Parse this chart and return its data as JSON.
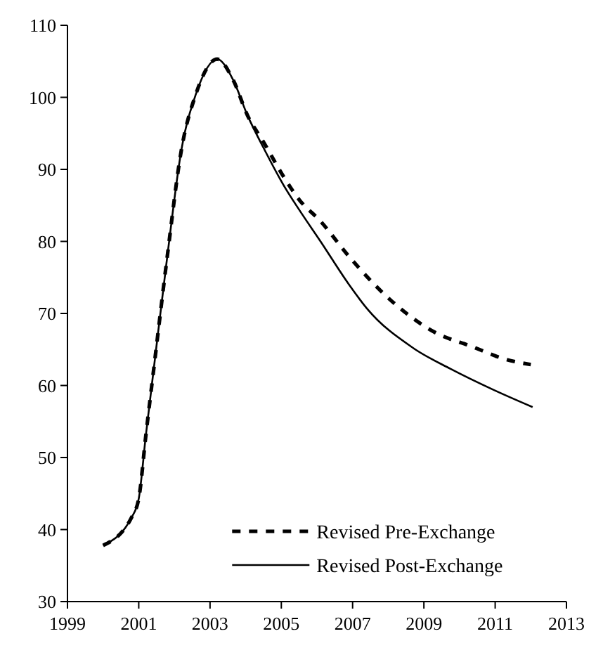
{
  "chart_data": {
    "type": "line",
    "xlim": [
      1999,
      2013
    ],
    "xticks": [
      1999,
      2001,
      2003,
      2005,
      2007,
      2009,
      2011,
      2013
    ],
    "ylim": [
      30,
      110
    ],
    "yticks": [
      30,
      40,
      50,
      60,
      70,
      80,
      90,
      100,
      110
    ],
    "grid": false,
    "legend": "bottom right",
    "series": [
      {
        "name": "Revised Pre-Exchange",
        "color": "#000000",
        "line_style": "dashed",
        "x": [
          2000.0,
          2000.8,
          2001.0,
          2001.2,
          2001.45,
          2001.8,
          2002.2,
          2002.6,
          2003.2,
          2003.65,
          2004.05,
          2004.5,
          2005.1,
          2005.5,
          2006.1,
          2006.9,
          2008.1,
          2009.3,
          2010.35,
          2011.25,
          2012.0
        ],
        "values": [
          37.8,
          41.7,
          44.3,
          53.1,
          63.5,
          77.9,
          92.8,
          100.4,
          105.3,
          102.4,
          97.5,
          93.8,
          88.7,
          85.8,
          82.8,
          77.9,
          71.7,
          67.4,
          65.4,
          63.7,
          62.9
        ]
      },
      {
        "name": "Revised Post-Exchange",
        "color": "#000000",
        "line_style": "solid",
        "x": [
          2000.0,
          2000.8,
          2001.0,
          2001.2,
          2001.45,
          2001.8,
          2002.2,
          2002.6,
          2003.2,
          2003.65,
          2004.05,
          2004.5,
          2005.1,
          2005.5,
          2006.1,
          2006.9,
          2007.4,
          2008.7,
          2009.75,
          2010.95,
          2012.05
        ],
        "values": [
          37.8,
          41.7,
          44.3,
          53.1,
          63.5,
          77.9,
          92.8,
          100.4,
          105.3,
          102.4,
          97.5,
          93.0,
          87.5,
          84.4,
          80.0,
          74.0,
          70.7,
          65.2,
          62.3,
          59.4,
          57.0
        ]
      }
    ]
  }
}
